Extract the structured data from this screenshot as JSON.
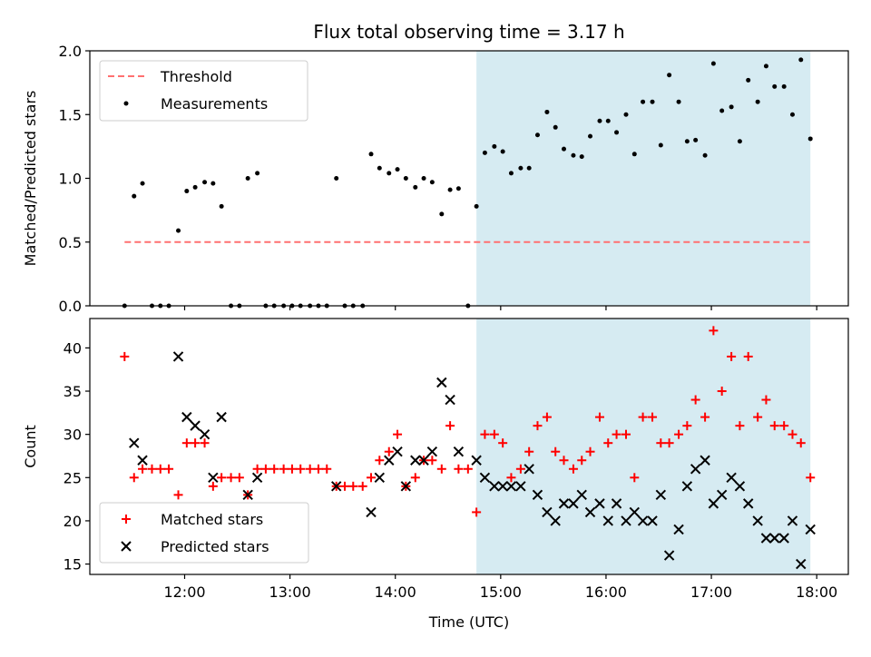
{
  "chart_data": {
    "title": "Flux total observing time = 3.17 h",
    "xlabel": "Time (UTC)",
    "x_unit": "hours UTC",
    "xlim": [
      11.1,
      18.3
    ],
    "xticks": [
      12,
      13,
      14,
      15,
      16,
      17,
      18
    ],
    "xtick_labels": [
      "12:00",
      "13:00",
      "14:00",
      "15:00",
      "16:00",
      "17:00",
      "18:00"
    ],
    "highlight_region": {
      "start": 14.77,
      "end": 17.94,
      "color": "#add8e6"
    },
    "panels": [
      {
        "type": "scatter",
        "ylabel": "Matched/Predicted stars",
        "ylim": [
          0,
          2.0
        ],
        "yticks": [
          0.0,
          0.5,
          1.0,
          1.5,
          2.0
        ],
        "ytick_labels": [
          "0.0",
          "0.5",
          "1.0",
          "1.5",
          "2.0"
        ],
        "legend_position": "top-left",
        "threshold": {
          "name": "Threshold",
          "value": 0.5,
          "x_range": [
            11.43,
            17.94
          ],
          "color": "#ff7070"
        },
        "series": [
          {
            "name": "Measurements",
            "marker": "dot",
            "color": "#000000",
            "x": [
              11.43,
              11.52,
              11.6,
              11.69,
              11.77,
              11.85,
              11.94,
              12.02,
              12.1,
              12.19,
              12.27,
              12.35,
              12.44,
              12.52,
              12.6,
              12.69,
              12.77,
              12.85,
              12.94,
              13.02,
              13.1,
              13.19,
              13.27,
              13.35,
              13.44,
              13.52,
              13.6,
              13.69,
              13.77,
              13.85,
              13.94,
              14.02,
              14.1,
              14.19,
              14.27,
              14.35,
              14.44,
              14.52,
              14.6,
              14.69,
              14.77,
              14.85,
              14.94,
              15.02,
              15.1,
              15.19,
              15.27,
              15.35,
              15.44,
              15.52,
              15.6,
              15.69,
              15.77,
              15.85,
              15.94,
              16.02,
              16.1,
              16.19,
              16.27,
              16.35,
              16.44,
              16.52,
              16.6,
              16.69,
              16.77,
              16.85,
              16.94,
              17.02,
              17.1,
              17.19,
              17.27,
              17.35,
              17.44,
              17.52,
              17.6,
              17.69,
              17.77,
              17.85,
              17.94
            ],
            "y": [
              0.0,
              0.86,
              0.96,
              0.0,
              0.0,
              0.0,
              0.59,
              0.9,
              0.93,
              0.97,
              0.96,
              0.78,
              0.0,
              0.0,
              1.0,
              1.04,
              0.0,
              0.0,
              0.0,
              0.0,
              0.0,
              0.0,
              0.0,
              0.0,
              1.0,
              0.0,
              0.0,
              0.0,
              1.19,
              1.08,
              1.04,
              1.07,
              1.0,
              0.93,
              1.0,
              0.97,
              0.72,
              0.91,
              0.92,
              0.0,
              0.78,
              1.2,
              1.25,
              1.21,
              1.04,
              1.08,
              1.08,
              1.34,
              1.52,
              1.4,
              1.23,
              1.18,
              1.17,
              1.33,
              1.45,
              1.45,
              1.36,
              1.5,
              1.19,
              1.6,
              1.6,
              1.26,
              1.81,
              1.6,
              1.29,
              1.3,
              1.18,
              1.9,
              1.53,
              1.56,
              1.29,
              1.77,
              1.6,
              1.88,
              1.72,
              1.72,
              1.5,
              1.93,
              1.31
            ]
          }
        ]
      },
      {
        "type": "scatter",
        "ylabel": "Count",
        "ylim": [
          13.8,
          43.4
        ],
        "yticks": [
          15,
          20,
          25,
          30,
          35,
          40
        ],
        "ytick_labels": [
          "15",
          "20",
          "25",
          "30",
          "35",
          "40"
        ],
        "legend_position": "bottom-left",
        "series": [
          {
            "name": "Matched stars",
            "marker": "plus",
            "color": "#ff0000",
            "x": [
              11.43,
              11.52,
              11.6,
              11.69,
              11.77,
              11.85,
              11.94,
              12.02,
              12.1,
              12.19,
              12.27,
              12.35,
              12.44,
              12.52,
              12.6,
              12.69,
              12.77,
              12.85,
              12.94,
              13.02,
              13.1,
              13.19,
              13.27,
              13.35,
              13.44,
              13.52,
              13.6,
              13.69,
              13.77,
              13.85,
              13.94,
              14.02,
              14.1,
              14.19,
              14.27,
              14.35,
              14.44,
              14.52,
              14.6,
              14.69,
              14.77,
              14.85,
              14.94,
              15.02,
              15.1,
              15.19,
              15.27,
              15.35,
              15.44,
              15.52,
              15.6,
              15.69,
              15.77,
              15.85,
              15.94,
              16.02,
              16.1,
              16.19,
              16.27,
              16.35,
              16.44,
              16.52,
              16.6,
              16.69,
              16.77,
              16.85,
              16.94,
              17.02,
              17.1,
              17.19,
              17.27,
              17.35,
              17.44,
              17.52,
              17.6,
              17.69,
              17.77,
              17.85,
              17.94
            ],
            "y": [
              39,
              25,
              26,
              26,
              26,
              26,
              23,
              29,
              29,
              29,
              24,
              25,
              25,
              25,
              23,
              26,
              26,
              26,
              26,
              26,
              26,
              26,
              26,
              26,
              24,
              24,
              24,
              24,
              25,
              27,
              28,
              30,
              24,
              25,
              27,
              27,
              26,
              31,
              26,
              26,
              21,
              30,
              30,
              29,
              25,
              26,
              28,
              31,
              32,
              28,
              27,
              26,
              27,
              28,
              32,
              29,
              30,
              30,
              25,
              32,
              32,
              29,
              29,
              30,
              31,
              34,
              32,
              42,
              35,
              39,
              31,
              39,
              32,
              34,
              31,
              31,
              30,
              29,
              25
            ]
          },
          {
            "name": "Predicted stars",
            "marker": "x",
            "color": "#000000",
            "x": [
              11.52,
              11.6,
              11.94,
              12.02,
              12.1,
              12.19,
              12.27,
              12.35,
              12.6,
              12.69,
              13.44,
              13.77,
              13.85,
              13.94,
              14.02,
              14.1,
              14.19,
              14.27,
              14.35,
              14.44,
              14.52,
              14.6,
              14.77,
              14.85,
              14.94,
              15.02,
              15.1,
              15.19,
              15.27,
              15.35,
              15.44,
              15.52,
              15.6,
              15.69,
              15.77,
              15.85,
              15.94,
              16.02,
              16.1,
              16.19,
              16.27,
              16.35,
              16.44,
              16.52,
              16.6,
              16.69,
              16.77,
              16.85,
              16.94,
              17.02,
              17.1,
              17.19,
              17.27,
              17.35,
              17.44,
              17.52,
              17.6,
              17.69,
              17.77,
              17.85,
              17.94
            ],
            "y": [
              29,
              27,
              39,
              32,
              31,
              30,
              25,
              32,
              23,
              25,
              24,
              21,
              25,
              27,
              28,
              24,
              27,
              27,
              28,
              36,
              34,
              28,
              27,
              25,
              24,
              24,
              24,
              24,
              26,
              23,
              21,
              20,
              22,
              22,
              23,
              21,
              22,
              20,
              22,
              20,
              21,
              20,
              20,
              23,
              16,
              19,
              24,
              26,
              27,
              22,
              23,
              25,
              24,
              22,
              20,
              18,
              18,
              18,
              20,
              15,
              19
            ]
          }
        ]
      }
    ]
  }
}
